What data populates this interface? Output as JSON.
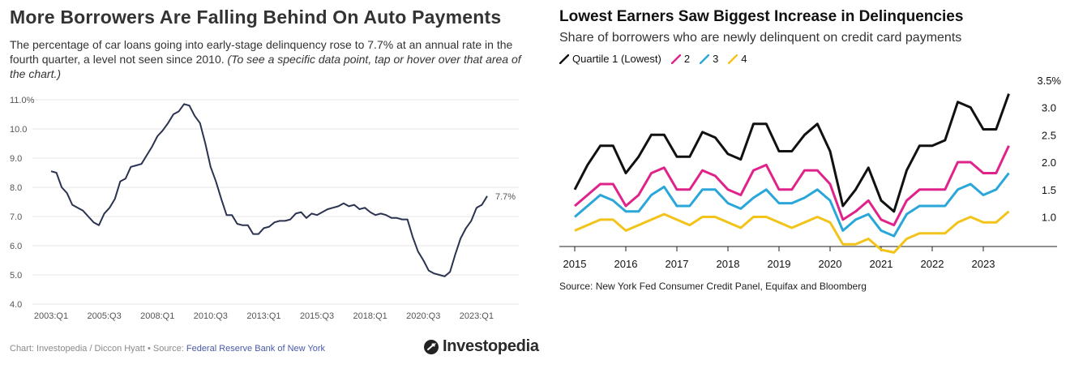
{
  "left": {
    "title": "More Borrowers Are Falling Behind On Auto Payments",
    "description": "The percentage of car loans going into early-stage delinquency rose to 7.7% at an annual rate in the fourth quarter, a level not seen since 2010.",
    "description_italic": "(To see a specific data point, tap or hover over that area of the chart.)",
    "footer_credit": "Chart: Investopedia / Diccon Hyatt • Source:",
    "footer_link": "Federal Reserve Bank of New York",
    "brand": "Investopedia",
    "brand_icon": "investopedia-logo-icon",
    "colors": {
      "line": "#2b3350",
      "grid": "#e6e6e6",
      "link": "#4a5aa8"
    }
  },
  "right": {
    "title": "Lowest Earners Saw Biggest Increase in Delinquencies",
    "subtitle": "Share of borrowers who are newly delinquent on credit card payments",
    "source": "Source: New York Fed Consumer Credit Panel, Equifax and Bloomberg",
    "legend": [
      {
        "label": "Quartile 1 (Lowest)",
        "color": "#111111"
      },
      {
        "label": "2",
        "color": "#e0238a"
      },
      {
        "label": "3",
        "color": "#2aa7d8"
      },
      {
        "label": "4",
        "color": "#f2c318"
      }
    ]
  },
  "chart_data": [
    {
      "type": "line",
      "title": "More Borrowers Are Falling Behind On Auto Payments",
      "xlabel": "",
      "ylabel": "",
      "ylim": [
        4.0,
        11.0
      ],
      "yticks": [
        "11.0%",
        "10.0",
        "9.0",
        "8.0",
        "7.0",
        "6.0",
        "5.0",
        "4.0"
      ],
      "xticks": [
        "2003:Q1",
        "2005:Q3",
        "2008:Q1",
        "2010:Q3",
        "2013:Q1",
        "2015:Q3",
        "2018:Q1",
        "2020:Q3",
        "2023:Q1"
      ],
      "end_label": "7.7%",
      "grid": "horizontal",
      "x": [
        "2003:Q1",
        "2003:Q2",
        "2003:Q3",
        "2003:Q4",
        "2004:Q1",
        "2004:Q2",
        "2004:Q3",
        "2004:Q4",
        "2005:Q1",
        "2005:Q2",
        "2005:Q3",
        "2005:Q4",
        "2006:Q1",
        "2006:Q2",
        "2006:Q3",
        "2006:Q4",
        "2007:Q1",
        "2007:Q2",
        "2007:Q3",
        "2007:Q4",
        "2008:Q1",
        "2008:Q2",
        "2008:Q3",
        "2008:Q4",
        "2009:Q1",
        "2009:Q2",
        "2009:Q3",
        "2009:Q4",
        "2010:Q1",
        "2010:Q2",
        "2010:Q3",
        "2010:Q4",
        "2011:Q1",
        "2011:Q2",
        "2011:Q3",
        "2011:Q4",
        "2012:Q1",
        "2012:Q2",
        "2012:Q3",
        "2012:Q4",
        "2013:Q1",
        "2013:Q2",
        "2013:Q3",
        "2013:Q4",
        "2014:Q1",
        "2014:Q2",
        "2014:Q3",
        "2014:Q4",
        "2015:Q1",
        "2015:Q2",
        "2015:Q3",
        "2015:Q4",
        "2016:Q1",
        "2016:Q2",
        "2016:Q3",
        "2016:Q4",
        "2017:Q1",
        "2017:Q2",
        "2017:Q3",
        "2017:Q4",
        "2018:Q1",
        "2018:Q2",
        "2018:Q3",
        "2018:Q4",
        "2019:Q1",
        "2019:Q2",
        "2019:Q3",
        "2019:Q4",
        "2020:Q1",
        "2020:Q2",
        "2020:Q3",
        "2020:Q4",
        "2021:Q1",
        "2021:Q2",
        "2021:Q3",
        "2021:Q4",
        "2022:Q1",
        "2022:Q2",
        "2022:Q3",
        "2022:Q4",
        "2023:Q1",
        "2023:Q2",
        "2023:Q3"
      ],
      "values": [
        8.55,
        8.5,
        8.0,
        7.8,
        7.4,
        7.3,
        7.2,
        7.0,
        6.8,
        6.7,
        7.1,
        7.3,
        7.6,
        8.2,
        8.3,
        8.7,
        8.75,
        8.8,
        9.1,
        9.4,
        9.75,
        9.95,
        10.2,
        10.5,
        10.6,
        10.85,
        10.8,
        10.45,
        10.2,
        9.5,
        8.7,
        8.2,
        7.6,
        7.05,
        7.05,
        6.75,
        6.7,
        6.7,
        6.4,
        6.4,
        6.6,
        6.65,
        6.8,
        6.85,
        6.85,
        6.9,
        7.1,
        7.15,
        6.95,
        7.1,
        7.05,
        7.15,
        7.25,
        7.3,
        7.35,
        7.45,
        7.35,
        7.4,
        7.25,
        7.3,
        7.15,
        7.05,
        7.1,
        7.05,
        6.95,
        6.95,
        6.9,
        6.9,
        6.3,
        5.8,
        5.5,
        5.15,
        5.05,
        5.0,
        4.95,
        5.1,
        5.7,
        6.25,
        6.6,
        6.85,
        7.3,
        7.4,
        7.7
      ]
    },
    {
      "type": "line",
      "title": "Lowest Earners Saw Biggest Increase in Delinquencies",
      "xlabel": "",
      "ylabel": "",
      "ylim": [
        0.4,
        3.6
      ],
      "yticks": [
        "3.5%",
        "3.0",
        "2.5",
        "2.0",
        "1.5",
        "1.0"
      ],
      "xticks": [
        "2015",
        "2016",
        "2017",
        "2018",
        "2019",
        "2020",
        "2021",
        "2022",
        "2023"
      ],
      "grid": "off",
      "x": [
        2015.0,
        2015.25,
        2015.5,
        2015.75,
        2016.0,
        2016.25,
        2016.5,
        2016.75,
        2017.0,
        2017.25,
        2017.5,
        2017.75,
        2018.0,
        2018.25,
        2018.5,
        2018.75,
        2019.0,
        2019.25,
        2019.5,
        2019.75,
        2020.0,
        2020.25,
        2020.5,
        2020.75,
        2021.0,
        2021.25,
        2021.5,
        2021.75,
        2022.0,
        2022.25,
        2022.5,
        2022.75,
        2023.0,
        2023.25,
        2023.5
      ],
      "series": [
        {
          "name": "Quartile 1 (Lowest)",
          "color": "#111111",
          "values": [
            1.5,
            1.95,
            2.3,
            2.3,
            1.8,
            2.1,
            2.5,
            2.5,
            2.1,
            2.1,
            2.55,
            2.45,
            2.15,
            2.05,
            2.7,
            2.7,
            2.2,
            2.2,
            2.5,
            2.7,
            2.2,
            1.2,
            1.5,
            1.9,
            1.3,
            1.1,
            1.85,
            2.3,
            2.3,
            2.4,
            3.1,
            3.0,
            2.6,
            2.6,
            3.25
          ]
        },
        {
          "name": "2",
          "color": "#e0238a",
          "values": [
            1.2,
            1.4,
            1.6,
            1.6,
            1.2,
            1.4,
            1.8,
            1.9,
            1.5,
            1.5,
            1.85,
            1.75,
            1.5,
            1.4,
            1.85,
            1.95,
            1.5,
            1.5,
            1.85,
            1.85,
            1.6,
            0.95,
            1.1,
            1.3,
            0.95,
            0.85,
            1.3,
            1.5,
            1.5,
            1.5,
            2.0,
            2.0,
            1.8,
            1.8,
            2.3
          ]
        },
        {
          "name": "3",
          "color": "#2aa7d8",
          "values": [
            1.0,
            1.2,
            1.4,
            1.3,
            1.1,
            1.1,
            1.4,
            1.55,
            1.2,
            1.2,
            1.5,
            1.5,
            1.25,
            1.15,
            1.35,
            1.5,
            1.25,
            1.25,
            1.35,
            1.5,
            1.3,
            0.75,
            0.95,
            1.05,
            0.75,
            0.65,
            1.05,
            1.2,
            1.2,
            1.2,
            1.5,
            1.6,
            1.4,
            1.5,
            1.8
          ]
        },
        {
          "name": "4",
          "color": "#f2c318",
          "values": [
            0.75,
            0.85,
            0.95,
            0.95,
            0.75,
            0.85,
            0.95,
            1.05,
            0.95,
            0.85,
            1.0,
            1.0,
            0.9,
            0.8,
            1.0,
            1.0,
            0.9,
            0.8,
            0.9,
            1.0,
            0.9,
            0.5,
            0.5,
            0.6,
            0.4,
            0.35,
            0.6,
            0.7,
            0.7,
            0.7,
            0.9,
            1.0,
            0.9,
            0.9,
            1.1
          ]
        }
      ]
    }
  ]
}
